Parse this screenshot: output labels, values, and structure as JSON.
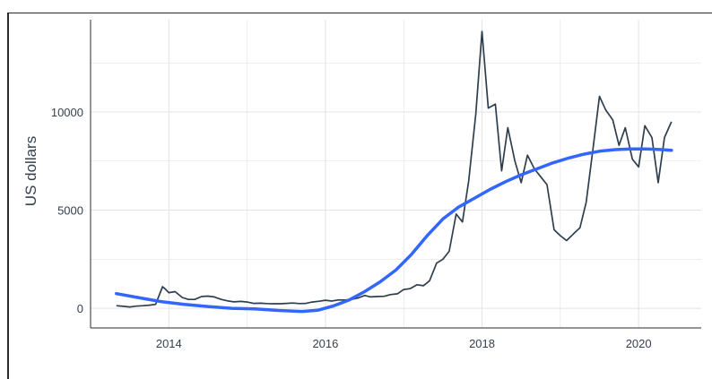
{
  "chart_data": {
    "type": "line",
    "title": "",
    "xlabel": "",
    "ylabel": "US dollars",
    "xlim": [
      2013.0,
      2020.8
    ],
    "ylim": [
      -1000,
      14700
    ],
    "xticks": [
      2014,
      2016,
      2018,
      2020
    ],
    "xtick_labels": [
      "2014",
      "2016",
      "2018",
      "2020"
    ],
    "yticks": [
      0,
      5000,
      10000
    ],
    "ytick_labels": [
      "0",
      "5000",
      "10000"
    ],
    "grid": true,
    "legend": "none",
    "colors": {
      "price": "#2f3e4e",
      "trend": "#3366ff",
      "grid": "#e3e3e3",
      "axis": "#2b2b2b"
    },
    "series": [
      {
        "type": "line",
        "x": [
          2013.33,
          2013.42,
          2013.5,
          2013.58,
          2013.67,
          2013.75,
          2013.83,
          2013.92,
          2013.95,
          2014.0,
          2014.08,
          2014.17,
          2014.25,
          2014.33,
          2014.42,
          2014.5,
          2014.58,
          2014.67,
          2014.75,
          2014.83,
          2014.92,
          2015.0,
          2015.08,
          2015.17,
          2015.25,
          2015.33,
          2015.42,
          2015.5,
          2015.58,
          2015.67,
          2015.75,
          2015.83,
          2015.92,
          2016.0,
          2016.08,
          2016.17,
          2016.25,
          2016.33,
          2016.42,
          2016.5,
          2016.58,
          2016.67,
          2016.75,
          2016.83,
          2016.92,
          2017.0,
          2017.08,
          2017.17,
          2017.25,
          2017.33,
          2017.42,
          2017.5,
          2017.58,
          2017.67,
          2017.75,
          2017.83,
          2017.92,
          2018.0,
          2018.08,
          2018.17,
          2018.25,
          2018.33,
          2018.42,
          2018.5,
          2018.58,
          2018.67,
          2018.75,
          2018.83,
          2018.92,
          2019.0,
          2019.08,
          2019.17,
          2019.25,
          2019.33,
          2019.42,
          2019.5,
          2019.58,
          2019.67,
          2019.75,
          2019.83,
          2019.92,
          2020.0,
          2020.08,
          2020.17,
          2020.25,
          2020.33,
          2020.42
        ],
        "y": [
          130,
          100,
          70,
          110,
          130,
          160,
          200,
          1100,
          1000,
          800,
          850,
          550,
          450,
          450,
          600,
          620,
          580,
          450,
          380,
          330,
          350,
          320,
          250,
          260,
          240,
          230,
          230,
          250,
          270,
          240,
          250,
          320,
          360,
          410,
          370,
          430,
          420,
          450,
          530,
          650,
          580,
          600,
          610,
          700,
          740,
          960,
          1000,
          1200,
          1150,
          1400,
          2300,
          2500,
          2900,
          4800,
          4400,
          6500,
          9900,
          14100,
          10200,
          10400,
          7000,
          9200,
          7500,
          6400,
          7800,
          7100,
          6700,
          6300,
          4000,
          3700,
          3450,
          3800,
          4100,
          5400,
          8200,
          10800,
          10100,
          9600,
          8300,
          9200,
          7600,
          7200,
          9300,
          8700,
          6400,
          8700,
          9500
        ]
      },
      {
        "type": "smooth",
        "x": [
          2013.33,
          2013.6,
          2013.9,
          2014.2,
          2014.5,
          2014.8,
          2015.1,
          2015.4,
          2015.7,
          2015.9,
          2016.1,
          2016.3,
          2016.5,
          2016.7,
          2016.9,
          2017.1,
          2017.3,
          2017.5,
          2017.7,
          2017.9,
          2018.1,
          2018.3,
          2018.5,
          2018.7,
          2018.9,
          2019.1,
          2019.3,
          2019.5,
          2019.7,
          2019.9,
          2020.1,
          2020.3,
          2020.42
        ],
        "y": [
          750,
          550,
          340,
          200,
          90,
          0,
          -30,
          -110,
          -160,
          -100,
          120,
          420,
          850,
          1350,
          1950,
          2750,
          3700,
          4550,
          5150,
          5600,
          6050,
          6450,
          6800,
          7100,
          7400,
          7650,
          7850,
          8000,
          8080,
          8120,
          8120,
          8080,
          8050
        ]
      }
    ]
  }
}
